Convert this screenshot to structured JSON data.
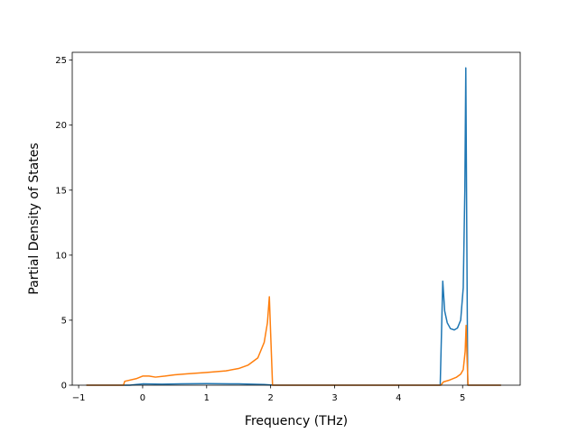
{
  "chart_data": {
    "type": "line",
    "title": "",
    "xlabel": "Frequency (THz)",
    "ylabel": "Partial Density of States",
    "xlim": [
      -1.1,
      5.9
    ],
    "ylim": [
      0,
      25.6
    ],
    "xticks": [
      -1,
      0,
      1,
      2,
      3,
      4,
      5
    ],
    "yticks": [
      0,
      5,
      10,
      15,
      20,
      25
    ],
    "grid": false,
    "legend": "none",
    "series": [
      {
        "color": "#1f77b4",
        "points": [
          [
            -0.88,
            0.0
          ],
          [
            -0.2,
            0.0
          ],
          [
            -0.1,
            0.05
          ],
          [
            0.0,
            0.1
          ],
          [
            0.3,
            0.08
          ],
          [
            0.6,
            0.1
          ],
          [
            1.0,
            0.12
          ],
          [
            1.5,
            0.1
          ],
          [
            1.9,
            0.05
          ],
          [
            2.0,
            0.02
          ],
          [
            2.05,
            0.0
          ],
          [
            3.0,
            0.0
          ],
          [
            4.0,
            0.0
          ],
          [
            4.65,
            0.0
          ],
          [
            4.67,
            4.0
          ],
          [
            4.69,
            8.0
          ],
          [
            4.72,
            5.7
          ],
          [
            4.76,
            4.8
          ],
          [
            4.81,
            4.35
          ],
          [
            4.87,
            4.25
          ],
          [
            4.92,
            4.4
          ],
          [
            4.97,
            5.0
          ],
          [
            5.01,
            7.5
          ],
          [
            5.035,
            15.0
          ],
          [
            5.05,
            24.4
          ],
          [
            5.065,
            12.0
          ],
          [
            5.08,
            0.0
          ],
          [
            5.6,
            0.0
          ]
        ]
      },
      {
        "color": "#ff7f0e",
        "points": [
          [
            -0.88,
            0.0
          ],
          [
            -0.3,
            0.0
          ],
          [
            -0.28,
            0.3
          ],
          [
            -0.1,
            0.5
          ],
          [
            0.0,
            0.7
          ],
          [
            0.1,
            0.7
          ],
          [
            0.2,
            0.62
          ],
          [
            0.35,
            0.7
          ],
          [
            0.5,
            0.8
          ],
          [
            0.7,
            0.88
          ],
          [
            1.0,
            0.98
          ],
          [
            1.3,
            1.1
          ],
          [
            1.5,
            1.28
          ],
          [
            1.65,
            1.55
          ],
          [
            1.8,
            2.1
          ],
          [
            1.9,
            3.3
          ],
          [
            1.95,
            4.8
          ],
          [
            1.98,
            6.8
          ],
          [
            2.0,
            4.0
          ],
          [
            2.03,
            0.0
          ],
          [
            3.0,
            0.0
          ],
          [
            4.0,
            0.0
          ],
          [
            4.66,
            0.0
          ],
          [
            4.7,
            0.25
          ],
          [
            4.8,
            0.4
          ],
          [
            4.9,
            0.6
          ],
          [
            4.97,
            0.85
          ],
          [
            5.01,
            1.2
          ],
          [
            5.04,
            2.6
          ],
          [
            5.055,
            4.6
          ],
          [
            5.07,
            2.0
          ],
          [
            5.085,
            0.0
          ],
          [
            5.6,
            0.0
          ]
        ]
      }
    ]
  }
}
